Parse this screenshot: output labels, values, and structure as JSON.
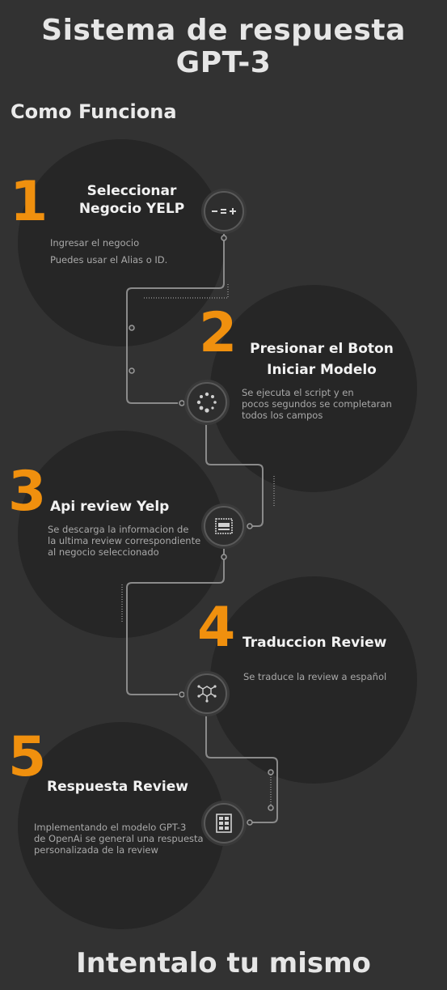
{
  "header": {
    "title_line1": "Sistema de respuesta",
    "title_line2": "GPT-3",
    "subtitle": "Como Funciona"
  },
  "steps": [
    {
      "number": "1",
      "title_line1": "Seleccionar",
      "title_line2": "Negocio YELP",
      "desc_lines": [
        "Ingresar el negocio",
        "Puedes usar el Alias o ID."
      ],
      "icon": "calculator-icon"
    },
    {
      "number": "2",
      "title_line1": "Presionar el Boton",
      "title_line2": "Iniciar Modelo",
      "desc_lines": [
        "Se ejecuta el script y en",
        "pocos segundos se completaran",
        "todos los campos"
      ],
      "icon": "loading-spinner-icon"
    },
    {
      "number": "3",
      "title_line1": "Api review Yelp",
      "desc_lines": [
        "Se descarga la informacion de",
        "la ultima review correspondiente",
        "al negocio seleccionado"
      ],
      "icon": "api-chip-icon"
    },
    {
      "number": "4",
      "title_line1": "Traduccion Review",
      "desc_lines": [
        "Se traduce la review a español"
      ],
      "icon": "molecule-icon"
    },
    {
      "number": "5",
      "title_line1": "Respuesta Review",
      "desc_lines": [
        "Implementando el modelo GPT-3",
        "de OpenAi se general una respuesta",
        "personalizada de la review"
      ],
      "icon": "grid-document-icon"
    }
  ],
  "footer": {
    "cta": "Intentalo tu mismo"
  },
  "colors": {
    "background": "#323232",
    "circle": "#262626",
    "accent": "#f0900e",
    "text": "#f2f2f2",
    "muted": "#a9a9a9"
  }
}
